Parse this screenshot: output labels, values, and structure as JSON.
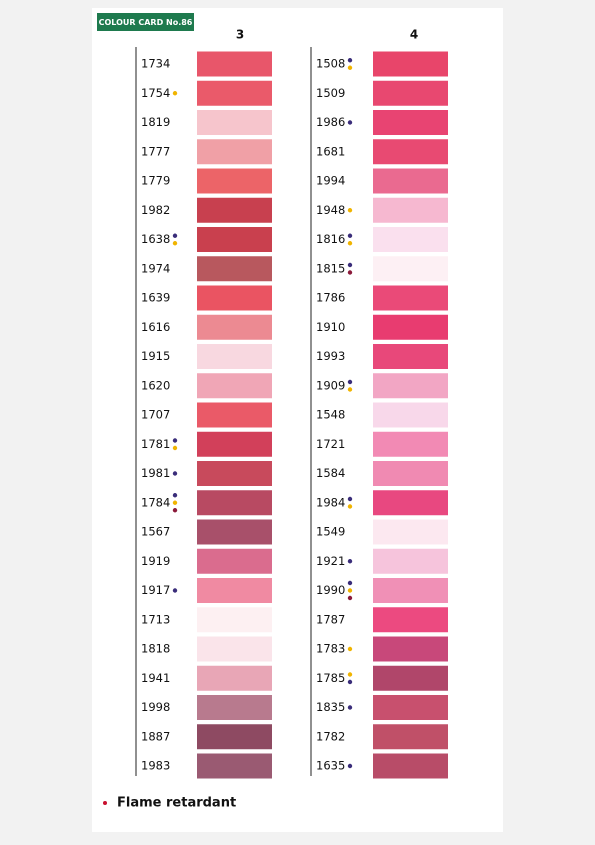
{
  "badge": "COLOUR CARD No.86",
  "columns": [
    {
      "header": "3",
      "swatches": [
        {
          "code": "1734",
          "color": "#e8566a",
          "dots": []
        },
        {
          "code": "1754",
          "color": "#ea5a6a",
          "dots": [
            "#f0b400"
          ]
        },
        {
          "code": "1819",
          "color": "#f6c5cc",
          "dots": []
        },
        {
          "code": "1777",
          "color": "#f0a0a6",
          "dots": []
        },
        {
          "code": "1779",
          "color": "#ec6468",
          "dots": []
        },
        {
          "code": "1982",
          "color": "#c8404f",
          "dots": []
        },
        {
          "code": "1638",
          "color": "#c9404e",
          "dots": [
            "#3a2d7a",
            "#f0b400"
          ]
        },
        {
          "code": "1974",
          "color": "#b8585e",
          "dots": []
        },
        {
          "code": "1639",
          "color": "#ea5462",
          "dots": []
        },
        {
          "code": "1616",
          "color": "#ec8a92",
          "dots": []
        },
        {
          "code": "1915",
          "color": "#f8d8e0",
          "dots": []
        },
        {
          "code": "1620",
          "color": "#f0a6b6",
          "dots": []
        },
        {
          "code": "1707",
          "color": "#ea5a68",
          "dots": []
        },
        {
          "code": "1781",
          "color": "#d2405a",
          "dots": [
            "#3a2d7a",
            "#f0b400"
          ]
        },
        {
          "code": "1981",
          "color": "#c84a5c",
          "dots": [
            "#3a2d7a"
          ]
        },
        {
          "code": "1784",
          "color": "#b84a62",
          "dots": [
            "#3a2d7a",
            "#f0b400",
            "#8b1a3a"
          ]
        },
        {
          "code": "1567",
          "color": "#a8506a",
          "dots": []
        },
        {
          "code": "1919",
          "color": "#da6c8e",
          "dots": []
        },
        {
          "code": "1917",
          "color": "#f08aa2",
          "dots": [
            "#3a2d7a"
          ]
        },
        {
          "code": "1713",
          "color": "#fdf0f2",
          "dots": []
        },
        {
          "code": "1818",
          "color": "#fae4ea",
          "dots": []
        },
        {
          "code": "1941",
          "color": "#e8a6b6",
          "dots": []
        },
        {
          "code": "1998",
          "color": "#b87a8e",
          "dots": []
        },
        {
          "code": "1887",
          "color": "#8e4a62",
          "dots": []
        },
        {
          "code": "1983",
          "color": "#9a5a72",
          "dots": []
        }
      ]
    },
    {
      "header": "4",
      "swatches": [
        {
          "code": "1508",
          "color": "#e8456a",
          "dots": [
            "#3a2d7a",
            "#f0b400"
          ]
        },
        {
          "code": "1509",
          "color": "#e84870",
          "dots": []
        },
        {
          "code": "1986",
          "color": "#e84472",
          "dots": [
            "#3a2d7a"
          ]
        },
        {
          "code": "1681",
          "color": "#e84a72",
          "dots": []
        },
        {
          "code": "1994",
          "color": "#ea6a90",
          "dots": []
        },
        {
          "code": "1948",
          "color": "#f6b8d0",
          "dots": [
            "#f0b400"
          ]
        },
        {
          "code": "1816",
          "color": "#fae0ee",
          "dots": [
            "#3a2d7a",
            "#f0b400"
          ]
        },
        {
          "code": "1815",
          "color": "#fdf0f4",
          "dots": [
            "#3a2d7a",
            "#8b1a3a"
          ]
        },
        {
          "code": "1786",
          "color": "#ea4a78",
          "dots": []
        },
        {
          "code": "1910",
          "color": "#e83c70",
          "dots": []
        },
        {
          "code": "1993",
          "color": "#e8487a",
          "dots": []
        },
        {
          "code": "1909",
          "color": "#f2a6c4",
          "dots": [
            "#3a2d7a",
            "#f0b400"
          ]
        },
        {
          "code": "1548",
          "color": "#f8d8ea",
          "dots": []
        },
        {
          "code": "1721",
          "color": "#f28ab4",
          "dots": []
        },
        {
          "code": "1584",
          "color": "#f08ab2",
          "dots": []
        },
        {
          "code": "1984",
          "color": "#e84880",
          "dots": [
            "#3a2d7a",
            "#f0b400"
          ]
        },
        {
          "code": "1549",
          "color": "#fce8f0",
          "dots": []
        },
        {
          "code": "1921",
          "color": "#f6c4dc",
          "dots": [
            "#3a2d7a"
          ]
        },
        {
          "code": "1990",
          "color": "#f090b6",
          "dots": [
            "#3a2d7a",
            "#f0b400",
            "#8b1a3a"
          ]
        },
        {
          "code": "1787",
          "color": "#ec4a80",
          "dots": []
        },
        {
          "code": "1783",
          "color": "#c8487a",
          "dots": [
            "#f0b400"
          ]
        },
        {
          "code": "1785",
          "color": "#b0466a",
          "dots": [
            "#f0b400",
            "#3a2d7a"
          ]
        },
        {
          "code": "1835",
          "color": "#c8506e",
          "dots": [
            "#3a2d7a"
          ]
        },
        {
          "code": "1782",
          "color": "#c05068",
          "dots": []
        },
        {
          "code": "1635",
          "color": "#b84c68",
          "dots": [
            "#3a2d7a"
          ]
        }
      ]
    }
  ],
  "legend": {
    "label": "Flame retardant",
    "color": "#c8102e"
  }
}
